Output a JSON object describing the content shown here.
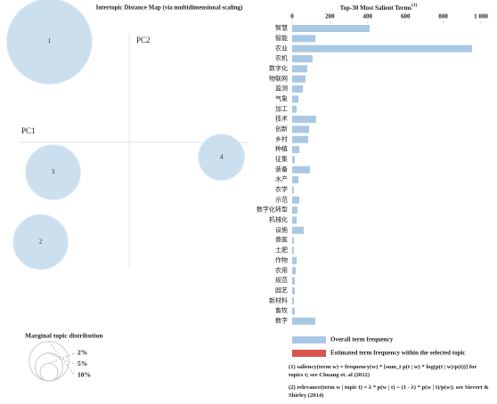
{
  "chart_data": [
    {
      "type": "bubble",
      "title": "Intertopic Distance Map (via multidimensional scaling)",
      "xlabel": "PC1",
      "ylabel": "PC2",
      "labels": [
        "1",
        "2",
        "3",
        "4"
      ],
      "x": [
        -0.64,
        -0.71,
        -0.61,
        0.74
      ],
      "y": [
        0.81,
        -0.8,
        -0.24,
        -0.12
      ],
      "sizes": [
        47,
        19.6,
        19.6,
        13.8
      ],
      "xlim": [
        -1,
        1
      ],
      "ylim": [
        -1,
        1
      ],
      "color": "#c6dbed",
      "size_legend": {
        "title": "Marginal topic distribution",
        "values": [
          {
            "value": 2,
            "label": "2%"
          },
          {
            "value": 5,
            "label": "5%"
          },
          {
            "value": 10,
            "label": "10%"
          }
        ]
      }
    },
    {
      "type": "bar",
      "orientation": "horizontal",
      "title": "Top-30 Most Salient Terms",
      "title_note": "(1)",
      "categories": [
        "智慧",
        "智能",
        "农业",
        "农机",
        "数字化",
        "物联网",
        "监测",
        "气象",
        "加工",
        "技术",
        "创新",
        "乡村",
        "种植",
        "征集",
        "装备",
        "水产",
        "农学",
        "示范",
        "数字化转型",
        "机械化",
        "设施",
        "兽医",
        "土肥",
        "作物",
        "农用",
        "规范",
        "园艺",
        "新材料",
        "畜牧",
        "数字"
      ],
      "series": [
        {
          "name": "Overall term frequency",
          "color": "#a9c8e3",
          "values": [
            410,
            123,
            953,
            108,
            80,
            71,
            57,
            33,
            24,
            127,
            90,
            85,
            38,
            14,
            94,
            33,
            9,
            38,
            28,
            24,
            61,
            9,
            9,
            24,
            19,
            14,
            14,
            9,
            14,
            123
          ]
        }
      ],
      "legend": [
        {
          "name": "Overall term frequency",
          "color": "#a9c8e3"
        },
        {
          "name": "Estimated term frequency within the selected topic",
          "color": "#d6564e"
        }
      ],
      "xlim": [
        0,
        1000
      ],
      "xticks": [
        0,
        200,
        400,
        600,
        800,
        {
          "value": 1000,
          "label": "1 000"
        }
      ],
      "notes": [
        "(1) saliency(term w) = frequency(w) * [sum_t p(t | w) * log(p(t | w)/p(t))] for topics t; see Chuang et. al (2012)",
        "(2) relevance(term w | topic t) = λ * p(w | t) + (1 - λ) * p(w | t)/p(w); see Sievert & Shirley (2014)"
      ]
    }
  ]
}
